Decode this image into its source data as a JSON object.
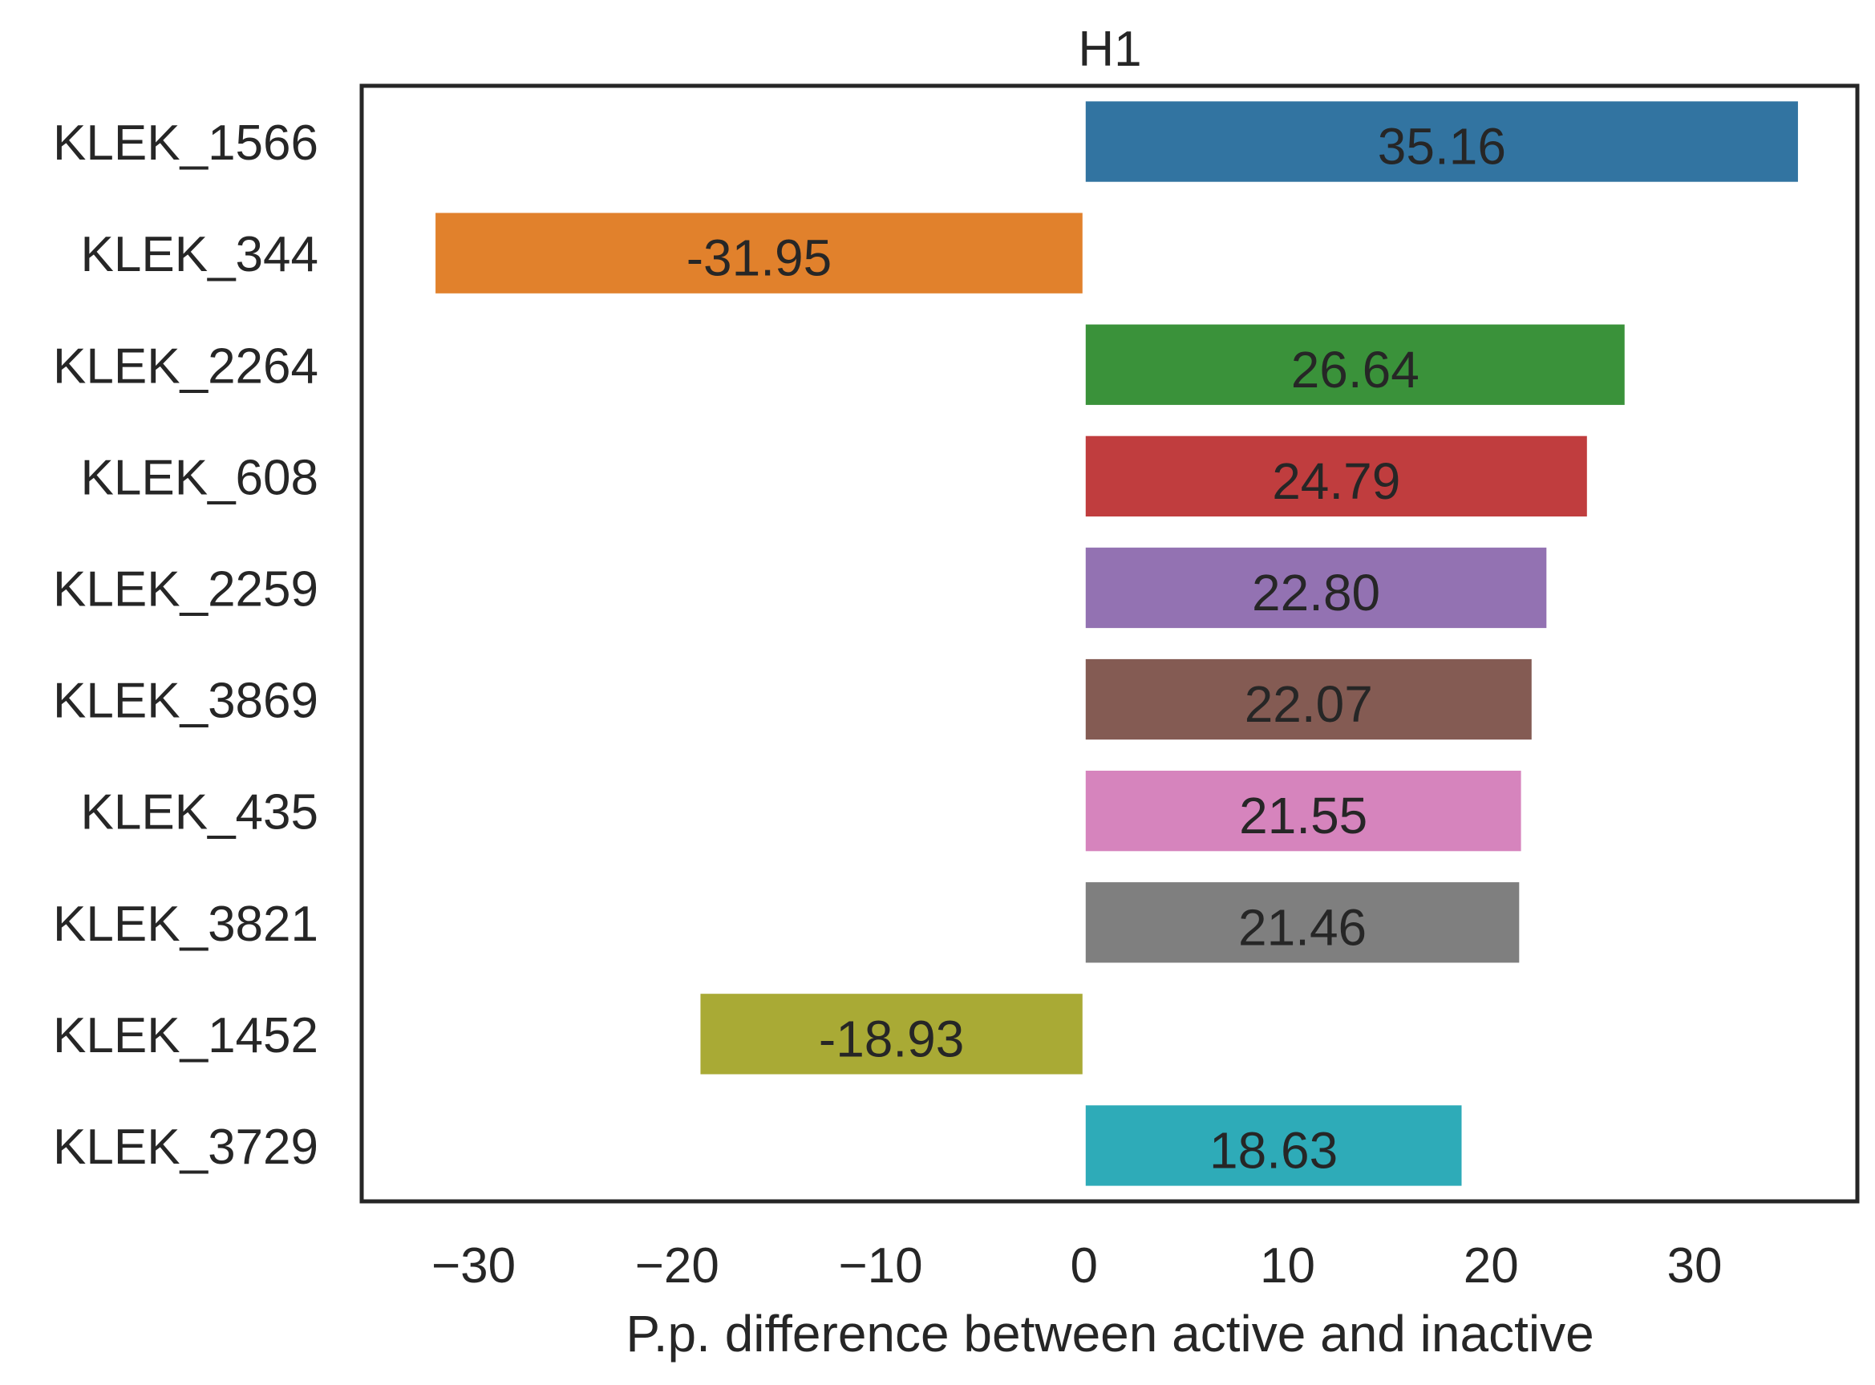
{
  "chart_data": {
    "type": "bar",
    "orientation": "horizontal",
    "title": "H1",
    "xlabel": "P.p. difference between active and inactive",
    "ylabel": "",
    "xlim": [
      -35.5,
      38.0
    ],
    "xticks": [
      -30,
      -20,
      -10,
      0,
      10,
      20,
      30
    ],
    "xtick_labels": [
      "−30",
      "−20",
      "−10",
      "0",
      "10",
      "20",
      "30"
    ],
    "grid": false,
    "categories": [
      "KLEK_1566",
      "KLEK_344",
      "KLEK_2264",
      "KLEK_608",
      "KLEK_2259",
      "KLEK_3869",
      "KLEK_435",
      "KLEK_3821",
      "KLEK_1452",
      "KLEK_3729"
    ],
    "values": [
      35.16,
      -31.95,
      26.64,
      24.79,
      22.8,
      22.07,
      21.55,
      21.46,
      -18.93,
      18.63
    ],
    "value_labels": [
      "35.16",
      "-31.95",
      "26.64",
      "24.79",
      "22.80",
      "22.07",
      "21.55",
      "21.46",
      "-18.93",
      "18.63"
    ],
    "colors": [
      "#3274a1",
      "#e1812c",
      "#3a923a",
      "#c03d3e",
      "#9372b2",
      "#845b53",
      "#d684bd",
      "#7f7f7f",
      "#a9aa35",
      "#2eabb8"
    ]
  }
}
